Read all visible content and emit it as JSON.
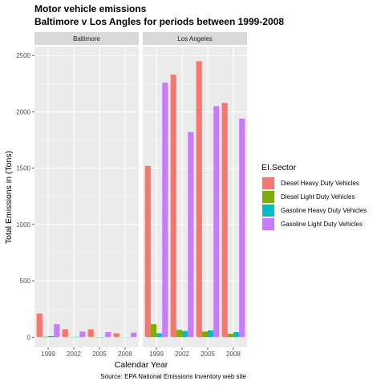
{
  "chart_data": {
    "type": "bar",
    "title": "Motor vehicle emissions",
    "subtitle": "Baltimore v Los Angles for periods between 1999-2008",
    "xlabel": "Calendar Year",
    "ylabel": "Total Emissions in (Tons)",
    "caption": "Source: EPA National Emissions Inventory web site",
    "legend_title": "EI.Sector",
    "legend_position": "right",
    "ylim": [
      -90,
      2580
    ],
    "yticks": [
      0,
      500,
      1000,
      1500,
      2000,
      2500
    ],
    "categories": [
      "1999",
      "2002",
      "2005",
      "2008"
    ],
    "series_names": [
      "Diesel Heavy Duty Vehicles",
      "Diesel Light Duty Vehicles",
      "Gasoline Heavy Duty Vehicles",
      "Gasoline Light Duty Vehicles"
    ],
    "colors": [
      "#F8766D",
      "#7CAE00",
      "#00BFC4",
      "#C77CFF"
    ],
    "grid": true,
    "panels": [
      {
        "name": "Baltimore",
        "values": [
          [
            210,
            70,
            70,
            35
          ],
          [
            5,
            3,
            3,
            2
          ],
          [
            10,
            4,
            3,
            2
          ],
          [
            115,
            50,
            45,
            40
          ]
        ]
      },
      {
        "name": "Los Angeles",
        "values": [
          [
            1520,
            2330,
            2450,
            2080
          ],
          [
            115,
            65,
            50,
            30
          ],
          [
            35,
            55,
            60,
            45
          ],
          [
            2260,
            1820,
            2050,
            1940
          ]
        ]
      }
    ]
  }
}
